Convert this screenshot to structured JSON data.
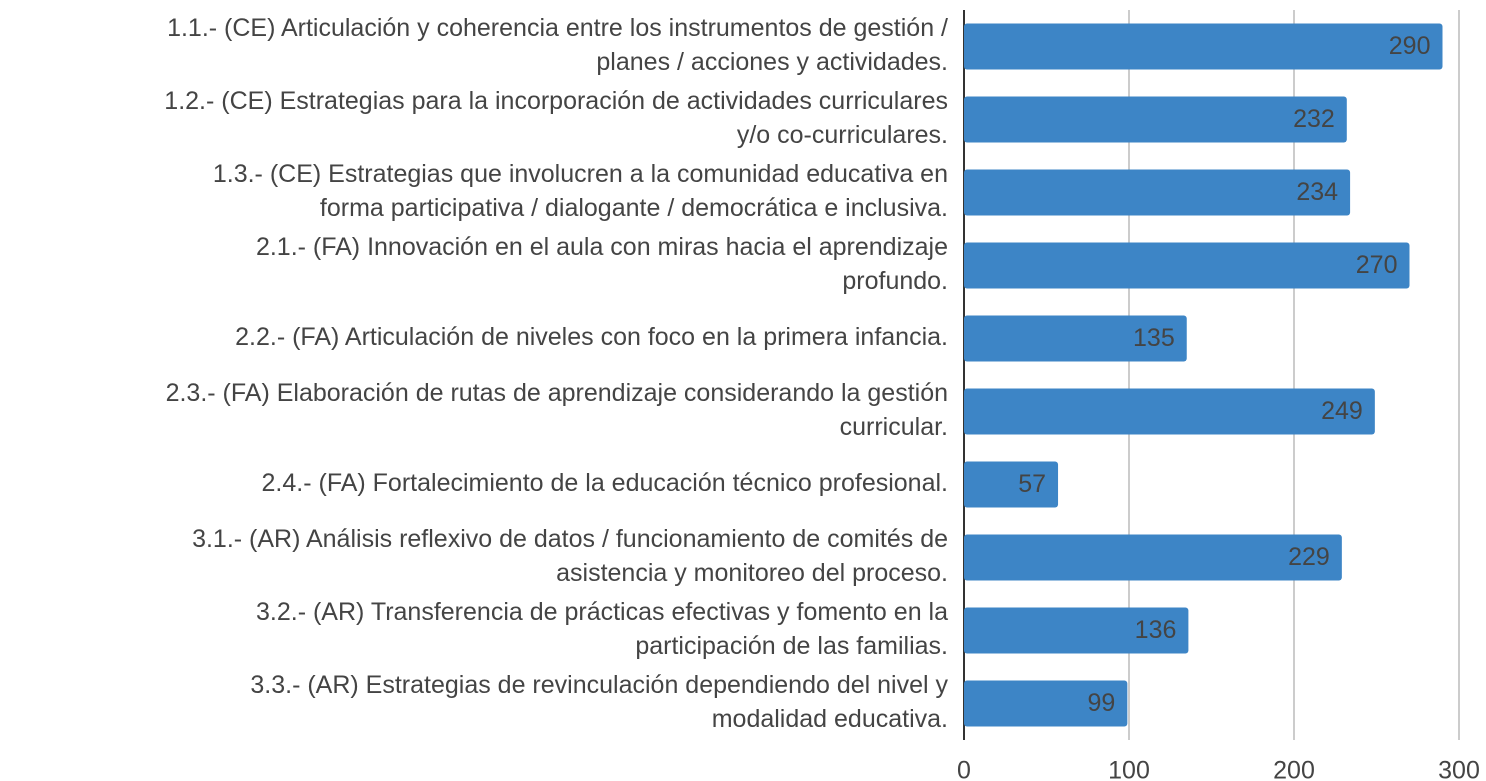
{
  "chart_data": {
    "type": "bar",
    "orientation": "horizontal",
    "categories": [
      [
        "1.1.- (CE) Articulación y coherencia entre los instrumentos de gestión /",
        "planes / acciones y actividades."
      ],
      [
        "1.2.- (CE) Estrategias para la incorporación de actividades curriculares",
        "y/o co-curriculares."
      ],
      [
        "1.3.- (CE) Estrategias que involucren a la comunidad educativa en",
        "forma participativa / dialogante / democrática e inclusiva."
      ],
      [
        "2.1.- (FA) Innovación en el aula con miras hacia el aprendizaje",
        "profundo."
      ],
      [
        "2.2.- (FA) Articulación de niveles con foco en la primera infancia."
      ],
      [
        "2.3.- (FA) Elaboración de rutas de aprendizaje considerando la gestión",
        "curricular."
      ],
      [
        "2.4.- (FA) Fortalecimiento de la educación técnico profesional."
      ],
      [
        "3.1.- (AR) Análisis reflexivo de datos / funcionamiento de comités de",
        "asistencia y monitoreo del proceso."
      ],
      [
        "3.2.- (AR) Transferencia de prácticas efectivas y fomento en la",
        "participación de las familias."
      ],
      [
        "3.3.- (AR) Estrategias de revinculación dependiendo del nivel y",
        "modalidad educativa."
      ]
    ],
    "values": [
      290,
      232,
      234,
      270,
      135,
      249,
      57,
      229,
      136,
      99
    ],
    "color": "#3d85c6",
    "xlim": [
      0,
      300
    ],
    "xticks": [
      0,
      100,
      200,
      300
    ],
    "grid": true
  }
}
